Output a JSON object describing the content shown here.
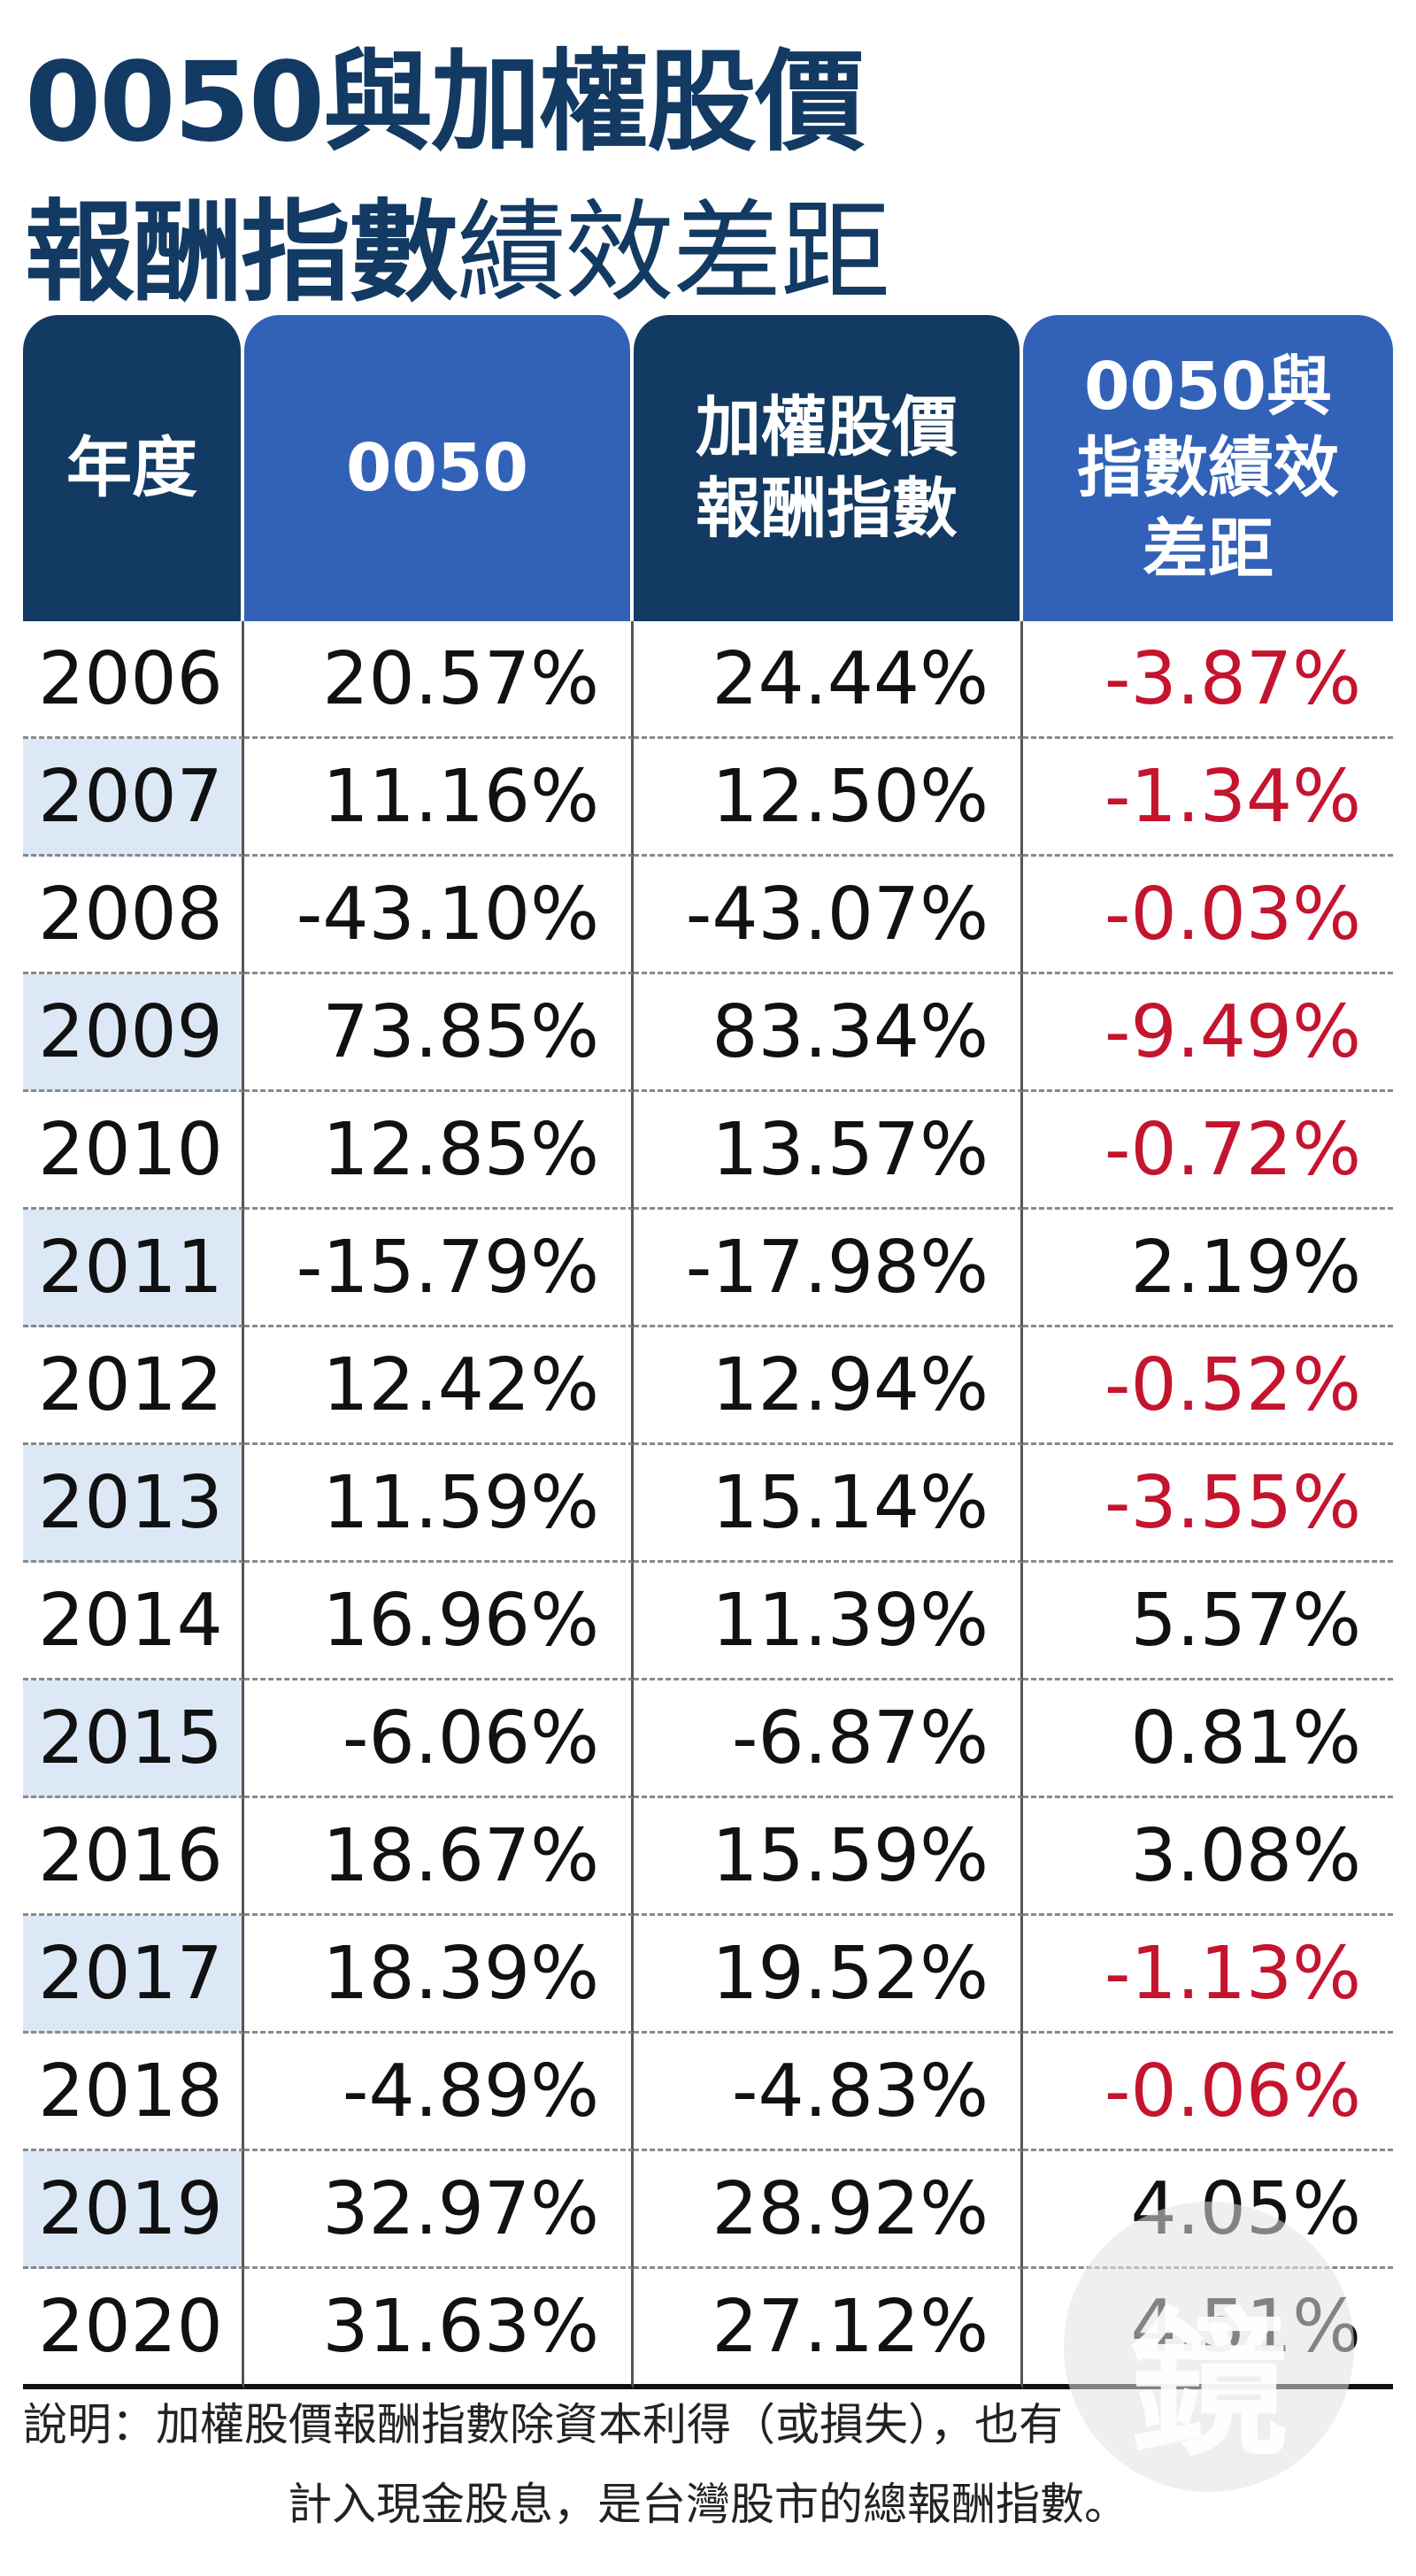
{
  "title": {
    "line1": "0050與加權股價",
    "line2_bold": "報酬指數",
    "line2_thin": "績效差距"
  },
  "chart_data": {
    "type": "table",
    "columns": [
      "年度",
      "0050",
      "加權股價\n報酬指數",
      "0050與\n指數績效\n差距"
    ],
    "rows": [
      [
        "2006",
        "20.57%",
        "24.44%",
        "-3.87%"
      ],
      [
        "2007",
        "11.16%",
        "12.50%",
        "-1.34%"
      ],
      [
        "2008",
        "-43.10%",
        "-43.07%",
        "-0.03%"
      ],
      [
        "2009",
        "73.85%",
        "83.34%",
        "-9.49%"
      ],
      [
        "2010",
        "12.85%",
        "13.57%",
        "-0.72%"
      ],
      [
        "2011",
        "-15.79%",
        "-17.98%",
        "2.19%"
      ],
      [
        "2012",
        "12.42%",
        "12.94%",
        "-0.52%"
      ],
      [
        "2013",
        "11.59%",
        "15.14%",
        "-3.55%"
      ],
      [
        "2014",
        "16.96%",
        "11.39%",
        "5.57%"
      ],
      [
        "2015",
        "-6.06%",
        "-6.87%",
        "0.81%"
      ],
      [
        "2016",
        "18.67%",
        "15.59%",
        "3.08%"
      ],
      [
        "2017",
        "18.39%",
        "19.52%",
        "-1.13%"
      ],
      [
        "2018",
        "-4.89%",
        "-4.83%",
        "-0.06%"
      ],
      [
        "2019",
        "32.97%",
        "28.92%",
        "4.05%"
      ],
      [
        "2020",
        "31.63%",
        "27.12%",
        "4.51%"
      ]
    ]
  },
  "footnote": {
    "line1": "說明：加權股價報酬指數除資本利得（或損失），也有",
    "line2": "計入現金股息，是台灣股市的總報酬指數。"
  },
  "logo_text": "鏡",
  "colors": {
    "header_dark": "#123a63",
    "header_mid": "#3162b8",
    "year_shade": "#dce8f5",
    "negative_gap": "#c5142e"
  }
}
